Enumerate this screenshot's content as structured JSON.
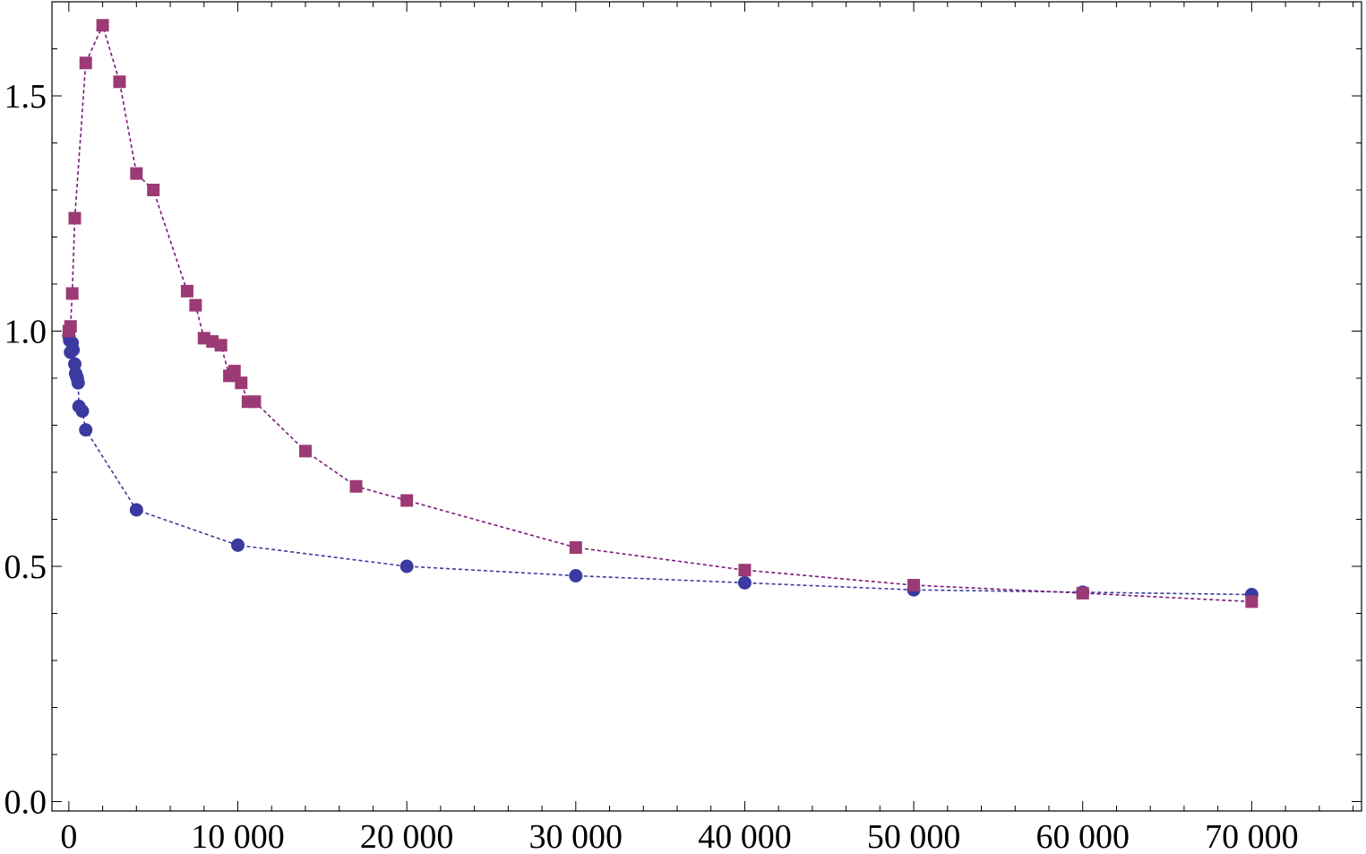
{
  "chart_data": {
    "type": "scatter",
    "title": "",
    "xlabel": "",
    "ylabel": "",
    "xlim": [
      -1000,
      76500
    ],
    "ylim": [
      -0.02,
      1.7
    ],
    "grid": false,
    "legend": "none",
    "x_ticks": [
      {
        "value": 0,
        "label": "0"
      },
      {
        "value": 10000,
        "label": "10 000"
      },
      {
        "value": 20000,
        "label": "20 000"
      },
      {
        "value": 30000,
        "label": "30 000"
      },
      {
        "value": 40000,
        "label": "40 000"
      },
      {
        "value": 50000,
        "label": "50 000"
      },
      {
        "value": 60000,
        "label": "60 000"
      },
      {
        "value": 70000,
        "label": "70 000"
      }
    ],
    "y_ticks": [
      {
        "value": 0.0,
        "label": "0.0"
      },
      {
        "value": 0.5,
        "label": "0.5"
      },
      {
        "value": 1.0,
        "label": "1.0"
      },
      {
        "value": 1.5,
        "label": "1.5"
      }
    ],
    "series": [
      {
        "marker": "circle",
        "color": "#3a3aa0",
        "line_color": "#3b3b9c",
        "line_style": "dashed",
        "points": [
          [
            0,
            0.99
          ],
          [
            50,
            0.98
          ],
          [
            100,
            0.955
          ],
          [
            200,
            0.975
          ],
          [
            250,
            0.96
          ],
          [
            350,
            0.93
          ],
          [
            400,
            0.91
          ],
          [
            450,
            0.905
          ],
          [
            500,
            0.9
          ],
          [
            550,
            0.89
          ],
          [
            600,
            0.84
          ],
          [
            800,
            0.83
          ],
          [
            1000,
            0.79
          ],
          [
            4000,
            0.62
          ],
          [
            10000,
            0.545
          ],
          [
            20000,
            0.5
          ],
          [
            30000,
            0.48
          ],
          [
            40000,
            0.465
          ],
          [
            50000,
            0.45
          ],
          [
            60000,
            0.445
          ],
          [
            70000,
            0.44
          ]
        ]
      },
      {
        "marker": "square",
        "color": "#9b3a74",
        "line_color": "#7a1a7a",
        "line_style": "dashed",
        "points": [
          [
            0,
            1.0
          ],
          [
            100,
            1.01
          ],
          [
            200,
            1.08
          ],
          [
            350,
            1.24
          ],
          [
            1000,
            1.57
          ],
          [
            2000,
            1.65
          ],
          [
            3000,
            1.53
          ],
          [
            4000,
            1.335
          ],
          [
            5000,
            1.3
          ],
          [
            7000,
            1.085
          ],
          [
            7500,
            1.055
          ],
          [
            8000,
            0.985
          ],
          [
            8500,
            0.978
          ],
          [
            9000,
            0.97
          ],
          [
            9500,
            0.905
          ],
          [
            9800,
            0.915
          ],
          [
            10200,
            0.89
          ],
          [
            10600,
            0.85
          ],
          [
            11000,
            0.85
          ],
          [
            14000,
            0.745
          ],
          [
            17000,
            0.67
          ],
          [
            20000,
            0.64
          ],
          [
            30000,
            0.54
          ],
          [
            40000,
            0.492
          ],
          [
            50000,
            0.46
          ],
          [
            60000,
            0.443
          ],
          [
            70000,
            0.425
          ]
        ]
      }
    ]
  }
}
